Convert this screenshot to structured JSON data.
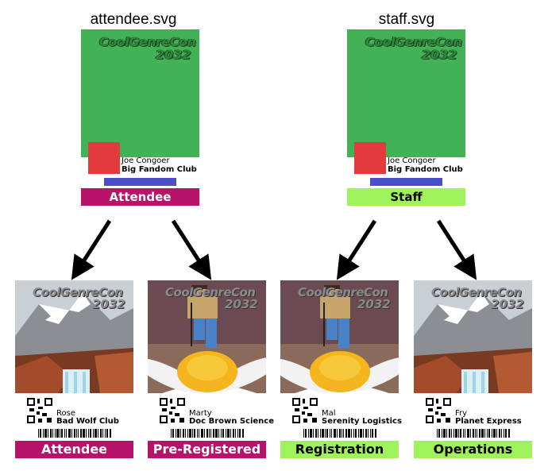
{
  "templates": [
    {
      "filename": "attendee.svg",
      "logo_line1": "CoolGenreCon",
      "logo_line2": "2032",
      "name": "Joe Congoer",
      "org": "Big Fandom Club",
      "role": "Attendee"
    },
    {
      "filename": "staff.svg",
      "logo_line1": "CoolGenreCon",
      "logo_line2": "2032",
      "name": "Joe Congoer",
      "org": "Big Fandom Club",
      "role": "Staff"
    }
  ],
  "badges": [
    {
      "logo_line1": "CoolGenreCon",
      "logo_line2": "2032",
      "name": "Rose",
      "org": "Bad Wolf Club",
      "role": "Attendee",
      "art": "mountain-waterfall-painting"
    },
    {
      "logo_line1": "CoolGenreCon",
      "logo_line2": "2032",
      "name": "Marty",
      "org": "Doc Brown Science",
      "role": "Pre-Registered",
      "art": "figure-on-daisy-photo"
    },
    {
      "logo_line1": "CoolGenreCon",
      "logo_line2": "2032",
      "name": "Mal",
      "org": "Serenity Logistics",
      "role": "Registration",
      "art": "figure-on-daisy-photo"
    },
    {
      "logo_line1": "CoolGenreCon",
      "logo_line2": "2032",
      "name": "Fry",
      "org": "Planet Express",
      "role": "Operations",
      "art": "mountain-waterfall-painting"
    }
  ],
  "colors": {
    "template_background": "#43b155",
    "template_photo": "#e33b3b",
    "template_bar": "#4a4fc9",
    "attendee_role": "#b8136a",
    "staff_role": "#9ef25a"
  }
}
